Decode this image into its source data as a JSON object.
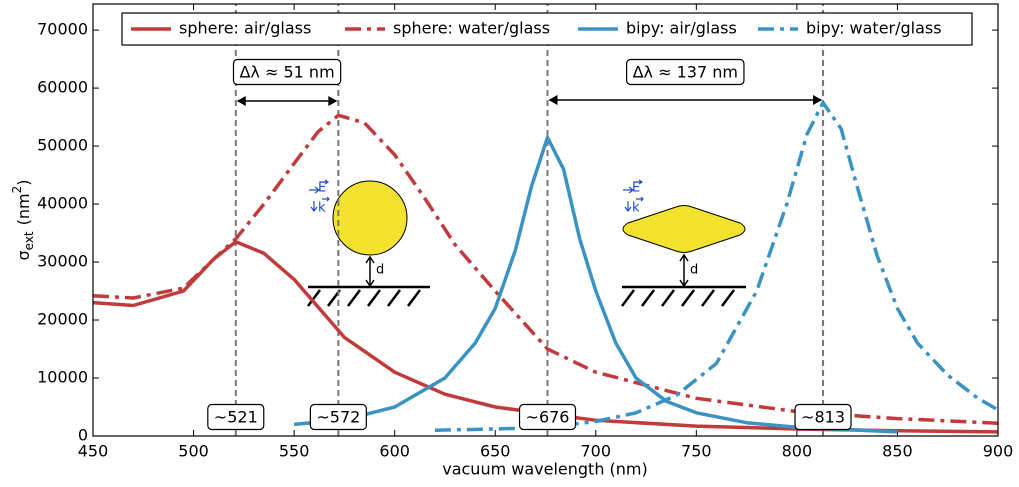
{
  "chart_data": {
    "type": "line",
    "xlabel": "vacuum wavelength (nm)",
    "ylabel": [
      "σ",
      "ext",
      "(nm",
      "2",
      ")"
    ],
    "xlim": [
      450,
      900
    ],
    "xticks": [
      450,
      500,
      550,
      600,
      650,
      700,
      750,
      800,
      850,
      900
    ],
    "ylim": [
      0,
      74500
    ],
    "yticks": [
      0,
      10000,
      20000,
      30000,
      40000,
      50000,
      60000,
      70000
    ],
    "grid": false,
    "legend": "top",
    "series": [
      {
        "name": "sphere: air/glass",
        "color": "#c13b3b",
        "style": "solid",
        "x": [
          450,
          470,
          495,
          510,
          521,
          535,
          550,
          575,
          600,
          625,
          650,
          700,
          750,
          800,
          850,
          900
        ],
        "values": [
          23000,
          22500,
          25000,
          30500,
          33500,
          31500,
          27000,
          17000,
          11000,
          7200,
          5000,
          2700,
          1700,
          1200,
          900,
          700
        ]
      },
      {
        "name": "sphere: water/glass",
        "color": "#c13b3b",
        "style": "dashdot",
        "x": [
          450,
          470,
          495,
          510,
          521,
          535,
          550,
          562,
          572,
          585,
          600,
          615,
          630,
          650,
          676,
          700,
          750,
          800,
          850,
          900
        ],
        "values": [
          24200,
          23800,
          25500,
          30500,
          34000,
          40000,
          47000,
          52500,
          55300,
          54000,
          48500,
          41000,
          33000,
          25000,
          15000,
          11000,
          6500,
          4200,
          3000,
          2200
        ]
      },
      {
        "name": "bipy: air/glass",
        "color": "#3a93c3",
        "style": "solid",
        "x": [
          550,
          575,
          600,
          625,
          640,
          650,
          660,
          668,
          676,
          684,
          692,
          700,
          710,
          720,
          735,
          750,
          775,
          800,
          850
        ],
        "values": [
          2000,
          2800,
          5000,
          10000,
          16000,
          22000,
          32000,
          43000,
          51500,
          46000,
          34000,
          25000,
          16000,
          10000,
          6000,
          4000,
          2300,
          1500,
          700
        ]
      },
      {
        "name": "bipy: water/glass",
        "color": "#3a93c3",
        "style": "dashdot",
        "x": [
          620,
          650,
          676,
          700,
          720,
          740,
          760,
          780,
          795,
          805,
          813,
          822,
          830,
          840,
          850,
          860,
          875,
          890,
          900
        ],
        "values": [
          1000,
          1200,
          1500,
          2500,
          4000,
          7000,
          12500,
          25000,
          40000,
          52000,
          57500,
          53000,
          43000,
          31000,
          22000,
          16000,
          10500,
          6500,
          4500
        ]
      }
    ],
    "reference_lines": [
      {
        "value": 521,
        "label": "~521"
      },
      {
        "value": 572,
        "label": "~572"
      },
      {
        "value": 676,
        "label": "~676"
      },
      {
        "value": 813,
        "label": "~813"
      }
    ],
    "spans": [
      {
        "from": 521,
        "to": 572,
        "label": "Δλ ≈ 51 nm"
      },
      {
        "from": 676,
        "to": 813,
        "label": "Δλ ≈ 137 nm"
      }
    ],
    "insets": [
      [
        "E",
        "k",
        "d"
      ],
      [
        "E",
        "k",
        "d"
      ]
    ]
  }
}
